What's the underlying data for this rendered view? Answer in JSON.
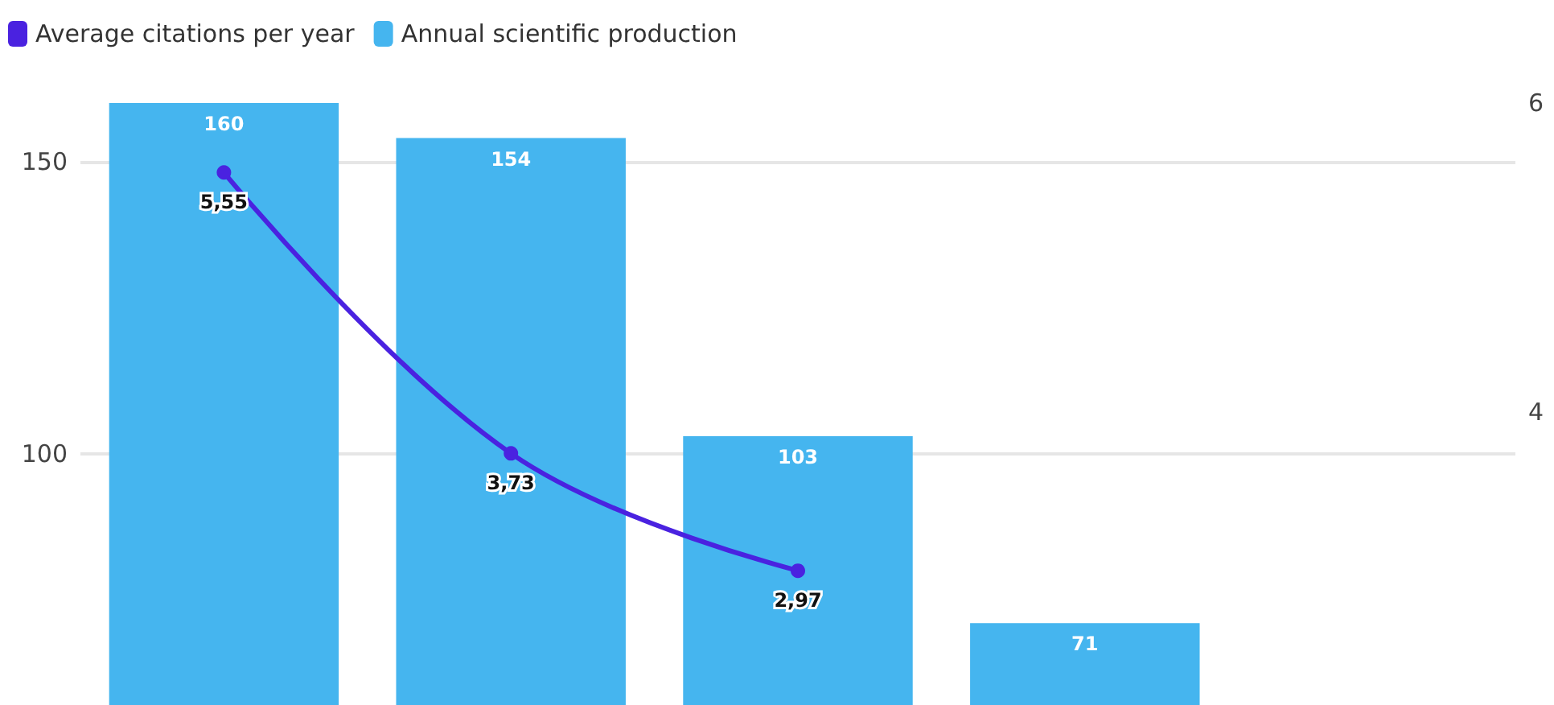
{
  "chart_data": {
    "type": "bar",
    "categories": [
      null,
      null,
      null,
      null,
      null
    ],
    "series": [
      {
        "name": "Average citations per year",
        "type": "line",
        "axis": "y2",
        "color": "#4a22e0",
        "values": [
          5.55,
          3.73,
          2.97,
          null,
          null
        ],
        "value_labels": [
          "5,55",
          "3,73",
          "2,97",
          null,
          null
        ]
      },
      {
        "name": "Annual scientific production",
        "color": "#45b5ef",
        "values": [
          160,
          154,
          103,
          71,
          null
        ],
        "value_labels": [
          "160",
          "154",
          "103",
          "71",
          null
        ]
      }
    ],
    "ylim": [
      57,
      160
    ],
    "yticks": [
      100,
      150
    ],
    "y2lim": [
      2.1,
      6
    ],
    "y2ticks": [
      4,
      6
    ],
    "grid": "y",
    "legend": "top left",
    "marker": "circle",
    "tick_labels": "y"
  }
}
